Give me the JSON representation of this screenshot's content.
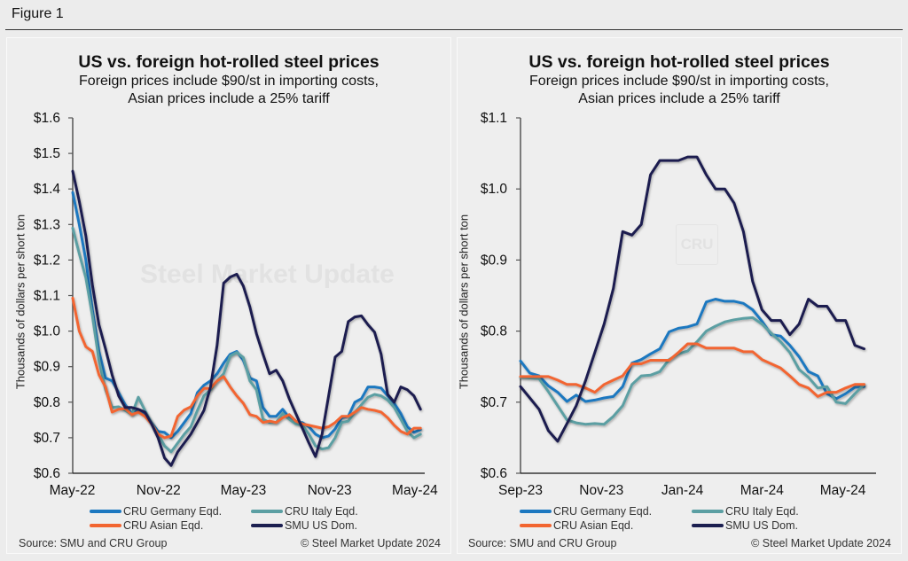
{
  "figure_title": "Figure 1",
  "colors": {
    "germany": "#1d78c0",
    "italy": "#5b9fa3",
    "asian": "#f26530",
    "us": "#1b1f50"
  },
  "watermark": {
    "text": "Steel Market Update",
    "logo": "CRU"
  },
  "chart_data": [
    {
      "type": "line",
      "title": "US vs. foreign hot-rolled steel prices",
      "subtitle_lines": [
        "Foreign prices include $90/st in importing costs,",
        "Asian prices include a 25% tariff"
      ],
      "ylabel": "Thousands of dollars per short ton",
      "xlabel": "",
      "ylim": [
        0.6,
        1.6
      ],
      "yticks": [
        "$0.6",
        "$0.7",
        "$0.8",
        "$0.9",
        "$1.0",
        "$1.1",
        "$1.2",
        "$1.3",
        "$1.4",
        "$1.5",
        "$1.6"
      ],
      "xticks": [
        {
          "label": "May-22",
          "date": "2022-05-01"
        },
        {
          "label": "Nov-22",
          "date": "2022-11-01"
        },
        {
          "label": "May-23",
          "date": "2023-05-01"
        },
        {
          "label": "Nov-23",
          "date": "2023-11-01"
        },
        {
          "label": "May-24",
          "date": "2024-05-01"
        }
      ],
      "xlim": [
        "2022-05-02",
        "2024-05-22"
      ],
      "grid": false,
      "legend_position": "bottom",
      "x": [
        "2022-05-02",
        "2022-05-16",
        "2022-05-30",
        "2022-06-13",
        "2022-06-27",
        "2022-07-11",
        "2022-07-25",
        "2022-08-08",
        "2022-08-22",
        "2022-09-05",
        "2022-09-19",
        "2022-10-03",
        "2022-10-17",
        "2022-10-31",
        "2022-11-14",
        "2022-11-28",
        "2022-12-12",
        "2022-12-26",
        "2023-01-09",
        "2023-01-23",
        "2023-02-06",
        "2023-02-20",
        "2023-03-06",
        "2023-03-20",
        "2023-04-03",
        "2023-04-17",
        "2023-05-01",
        "2023-05-15",
        "2023-05-29",
        "2023-06-12",
        "2023-06-26",
        "2023-07-10",
        "2023-07-24",
        "2023-08-07",
        "2023-08-21",
        "2023-09-04",
        "2023-09-18",
        "2023-10-02",
        "2023-10-16",
        "2023-10-30",
        "2023-11-13",
        "2023-11-27",
        "2023-12-11",
        "2023-12-25",
        "2024-01-08",
        "2024-01-22",
        "2024-02-05",
        "2024-02-19",
        "2024-03-04",
        "2024-03-18",
        "2024-04-01",
        "2024-04-15",
        "2024-04-29",
        "2024-05-13"
      ],
      "series": [
        {
          "name": "CRU Germany Eqd.",
          "color_key": "germany",
          "values": [
            1.39,
            1.3,
            1.2,
            1.06,
            0.943,
            0.868,
            0.86,
            0.827,
            0.793,
            0.768,
            0.777,
            0.768,
            0.743,
            0.718,
            0.715,
            0.7,
            0.718,
            0.743,
            0.768,
            0.827,
            0.848,
            0.86,
            0.88,
            0.91,
            0.935,
            0.943,
            0.918,
            0.868,
            0.86,
            0.785,
            0.76,
            0.76,
            0.78,
            0.756,
            0.743,
            0.743,
            0.731,
            0.71,
            0.7,
            0.705,
            0.725,
            0.756,
            0.76,
            0.8,
            0.81,
            0.843,
            0.843,
            0.84,
            0.818,
            0.797,
            0.768,
            0.731,
            0.715,
            0.723
          ]
        },
        {
          "name": "CRU Italy Eqd.",
          "color_key": "italy",
          "values": [
            1.29,
            1.218,
            1.15,
            1.043,
            0.918,
            0.835,
            0.785,
            0.787,
            0.777,
            0.765,
            0.814,
            0.777,
            0.743,
            0.71,
            0.677,
            0.66,
            0.685,
            0.71,
            0.731,
            0.777,
            0.818,
            0.835,
            0.86,
            0.88,
            0.93,
            0.94,
            0.926,
            0.86,
            0.835,
            0.752,
            0.743,
            0.743,
            0.768,
            0.752,
            0.739,
            0.735,
            0.71,
            0.677,
            0.668,
            0.672,
            0.7,
            0.743,
            0.747,
            0.772,
            0.793,
            0.814,
            0.822,
            0.818,
            0.806,
            0.785,
            0.752,
            0.718,
            0.7,
            0.71
          ]
        },
        {
          "name": "CRU Asian Eqd.",
          "color_key": "asian",
          "values": [
            1.093,
            1.0,
            0.956,
            0.943,
            0.877,
            0.843,
            0.772,
            0.78,
            0.782,
            0.765,
            0.772,
            0.76,
            0.739,
            0.71,
            0.7,
            0.705,
            0.76,
            0.778,
            0.787,
            0.818,
            0.839,
            0.839,
            0.86,
            0.872,
            0.843,
            0.818,
            0.797,
            0.765,
            0.76,
            0.743,
            0.747,
            0.743,
            0.756,
            0.765,
            0.747,
            0.739,
            0.735,
            0.731,
            0.727,
            0.731,
            0.743,
            0.76,
            0.76,
            0.772,
            0.785,
            0.78,
            0.777,
            0.772,
            0.756,
            0.735,
            0.718,
            0.71,
            0.727,
            0.727
          ]
        },
        {
          "name": "SMU US Dom.",
          "color_key": "us",
          "values": [
            1.45,
            1.365,
            1.268,
            1.13,
            1.018,
            0.95,
            0.877,
            0.818,
            0.785,
            0.785,
            0.78,
            0.772,
            0.74,
            0.7,
            0.643,
            0.622,
            0.66,
            0.685,
            0.71,
            0.743,
            0.777,
            0.843,
            0.96,
            1.135,
            1.152,
            1.16,
            1.127,
            1.068,
            0.993,
            0.935,
            0.88,
            0.89,
            0.86,
            0.81,
            0.768,
            0.727,
            0.685,
            0.647,
            0.71,
            0.818,
            0.927,
            0.943,
            1.027,
            1.04,
            1.043,
            1.018,
            0.997,
            0.935,
            0.822,
            0.8,
            0.843,
            0.835,
            0.818,
            0.78
          ]
        }
      ],
      "source": "Source: SMU and CRU Group",
      "copyright": "© Steel Market Update 2024"
    },
    {
      "type": "line",
      "title": "US vs. foreign hot-rolled steel prices",
      "subtitle_lines": [
        "Foreign prices include $90/st in importing costs,",
        "Asian prices include a 25% tariff"
      ],
      "ylabel": "Thousands of dollars per short ton",
      "xlabel": "",
      "ylim": [
        0.6,
        1.1
      ],
      "yticks": [
        "$0.6",
        "$0.7",
        "$0.8",
        "$0.9",
        "$1.0",
        "$1.1"
      ],
      "xticks": [
        {
          "label": "Sep-23",
          "date": "2023-09-01"
        },
        {
          "label": "Nov-23",
          "date": "2023-11-01"
        },
        {
          "label": "Jan-24",
          "date": "2024-01-01"
        },
        {
          "label": "Mar-24",
          "date": "2024-03-01"
        },
        {
          "label": "May-24",
          "date": "2024-05-01"
        }
      ],
      "xlim": [
        "2023-09-01",
        "2024-05-24"
      ],
      "grid": false,
      "legend_position": "bottom",
      "x": [
        "2023-09-01",
        "2023-09-08",
        "2023-09-15",
        "2023-09-22",
        "2023-09-29",
        "2023-10-06",
        "2023-10-13",
        "2023-10-20",
        "2023-10-27",
        "2023-11-03",
        "2023-11-10",
        "2023-11-17",
        "2023-11-24",
        "2023-12-01",
        "2023-12-08",
        "2023-12-15",
        "2023-12-22",
        "2023-12-29",
        "2024-01-05",
        "2024-01-12",
        "2024-01-19",
        "2024-01-26",
        "2024-02-02",
        "2024-02-09",
        "2024-02-16",
        "2024-02-23",
        "2024-03-01",
        "2024-03-08",
        "2024-03-15",
        "2024-03-22",
        "2024-03-29",
        "2024-04-05",
        "2024-04-12",
        "2024-04-19",
        "2024-04-26",
        "2024-05-03",
        "2024-05-10",
        "2024-05-17"
      ],
      "series": [
        {
          "name": "CRU Germany Eqd.",
          "color_key": "germany",
          "values": [
            0.758,
            0.741,
            0.737,
            0.723,
            0.714,
            0.701,
            0.71,
            0.701,
            0.703,
            0.706,
            0.708,
            0.722,
            0.755,
            0.76,
            0.768,
            0.775,
            0.799,
            0.804,
            0.806,
            0.81,
            0.841,
            0.845,
            0.842,
            0.842,
            0.839,
            0.83,
            0.814,
            0.795,
            0.793,
            0.78,
            0.764,
            0.743,
            0.737,
            0.712,
            0.705,
            0.712,
            0.721,
            0.722
          ]
        },
        {
          "name": "CRU Italy Eqd.",
          "color_key": "italy",
          "values": [
            0.735,
            0.734,
            0.733,
            0.715,
            0.695,
            0.675,
            0.671,
            0.669,
            0.67,
            0.669,
            0.68,
            0.695,
            0.725,
            0.737,
            0.738,
            0.743,
            0.76,
            0.768,
            0.772,
            0.785,
            0.8,
            0.807,
            0.813,
            0.816,
            0.818,
            0.819,
            0.81,
            0.797,
            0.785,
            0.77,
            0.746,
            0.735,
            0.72,
            0.722,
            0.7,
            0.698,
            0.712,
            0.725
          ]
        },
        {
          "name": "CRU Asian Eqd.",
          "color_key": "asian",
          "values": [
            0.736,
            0.736,
            0.736,
            0.736,
            0.731,
            0.725,
            0.725,
            0.72,
            0.714,
            0.725,
            0.731,
            0.737,
            0.754,
            0.754,
            0.759,
            0.759,
            0.759,
            0.77,
            0.782,
            0.782,
            0.776,
            0.776,
            0.776,
            0.776,
            0.771,
            0.771,
            0.76,
            0.754,
            0.748,
            0.737,
            0.725,
            0.72,
            0.708,
            0.714,
            0.714,
            0.72,
            0.725,
            0.725
          ]
        },
        {
          "name": "SMU US Dom.",
          "color_key": "us",
          "values": [
            0.722,
            0.706,
            0.69,
            0.66,
            0.645,
            0.67,
            0.695,
            0.73,
            0.77,
            0.81,
            0.86,
            0.94,
            0.935,
            0.95,
            1.02,
            1.04,
            1.04,
            1.04,
            1.045,
            1.045,
            1.02,
            1.0,
            1.0,
            0.98,
            0.94,
            0.87,
            0.83,
            0.815,
            0.815,
            0.795,
            0.81,
            0.845,
            0.835,
            0.835,
            0.815,
            0.815,
            0.78,
            0.775
          ]
        }
      ],
      "source": "Source: SMU and CRU Group",
      "copyright": "© Steel Market Update 2024"
    }
  ]
}
